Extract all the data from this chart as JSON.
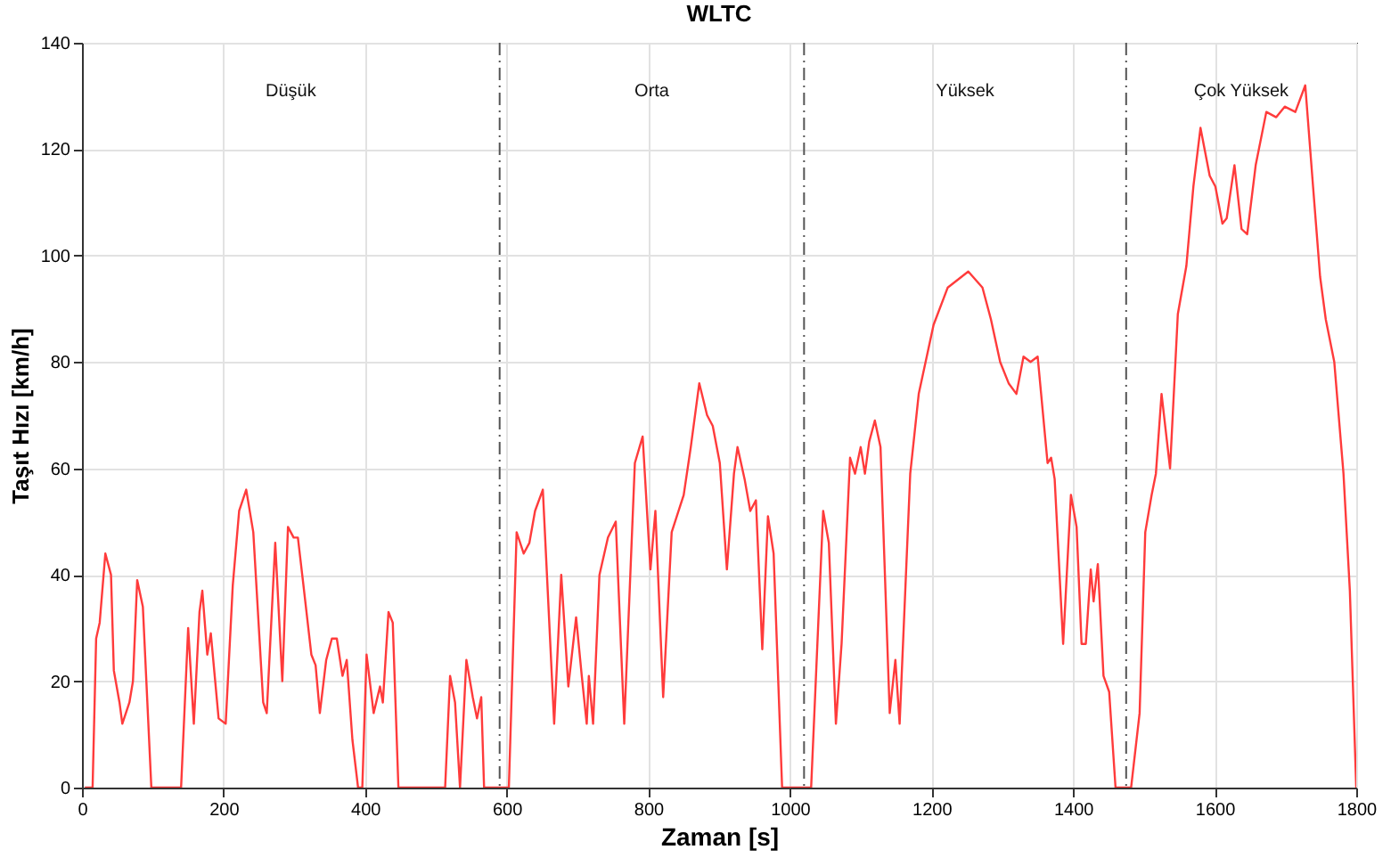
{
  "chart_data": {
    "type": "line",
    "title": "WLTC",
    "xlabel": "Zaman [s]",
    "ylabel": "Taşıt Hızı [km/h]",
    "x": [
      4,
      15,
      20,
      25,
      33,
      41,
      45,
      53,
      57,
      67,
      72,
      78,
      86,
      98,
      140,
      150,
      158,
      166,
      170,
      177,
      182,
      193,
      203,
      213,
      222,
      232,
      242,
      256,
      261,
      273,
      283,
      291,
      299,
      305,
      312,
      324,
      330,
      336,
      345,
      353,
      360,
      368,
      374,
      382,
      390,
      396,
      402,
      412,
      421,
      425,
      433,
      439,
      447,
      513,
      520,
      527,
      534,
      543,
      552,
      558,
      564,
      568,
      591,
      603,
      614,
      624,
      632,
      640,
      651,
      667,
      677,
      687,
      698,
      706,
      713,
      716,
      722,
      731,
      743,
      754,
      766,
      781,
      792,
      803,
      810,
      821,
      833,
      850,
      860,
      872,
      883,
      891,
      901,
      911,
      921,
      926,
      936,
      944,
      952,
      961,
      969,
      977,
      989,
      1026,
      1030,
      1047,
      1055,
      1065,
      1073,
      1085,
      1092,
      1100,
      1106,
      1112,
      1120,
      1128,
      1141,
      1149,
      1155,
      1170,
      1182,
      1203,
      1223,
      1252,
      1272,
      1284,
      1297,
      1309,
      1320,
      1330,
      1340,
      1350,
      1364,
      1369,
      1374,
      1386,
      1397,
      1405,
      1412,
      1418,
      1425,
      1429,
      1435,
      1443,
      1451,
      1460,
      1478,
      1482,
      1494,
      1502,
      1511,
      1517,
      1525,
      1537,
      1548,
      1560,
      1570,
      1580,
      1593,
      1601,
      1611,
      1617,
      1628,
      1638,
      1646,
      1658,
      1673,
      1687,
      1699,
      1714,
      1728,
      1739,
      1749,
      1757,
      1769,
      1782,
      1791,
      1800
    ],
    "series": [
      {
        "color": "#ff3b3b",
        "values": [
          0,
          0,
          28,
          31,
          44,
          40,
          22,
          16,
          12,
          16,
          20,
          39,
          34,
          0,
          0,
          30,
          12,
          33,
          37,
          25,
          29,
          13,
          12,
          38,
          52,
          56,
          48,
          16,
          14,
          46,
          20,
          49,
          47,
          47,
          39,
          25,
          23,
          14,
          24,
          28,
          28,
          21,
          24,
          9,
          0,
          0,
          25,
          14,
          19,
          16,
          33,
          31,
          0,
          0,
          21,
          16,
          0,
          24,
          17,
          13,
          17,
          0,
          0,
          0,
          48,
          44,
          46,
          52,
          56,
          12,
          40,
          19,
          32,
          21,
          12,
          21,
          12,
          40,
          47,
          50,
          12,
          61,
          66,
          41,
          52,
          17,
          48,
          55,
          64,
          76,
          70,
          68,
          61,
          41,
          59,
          64,
          58,
          52,
          54,
          26,
          51,
          44,
          0,
          0,
          0,
          52,
          46,
          12,
          27,
          62,
          59,
          64,
          59,
          65,
          69,
          64,
          14,
          24,
          12,
          59,
          74,
          87,
          94,
          97,
          94,
          88,
          80,
          76,
          74,
          81,
          80,
          81,
          61,
          62,
          58,
          27,
          55,
          49,
          27,
          27,
          41,
          35,
          42,
          21,
          18,
          0,
          0,
          0,
          14,
          48,
          55,
          59,
          74,
          60,
          89,
          98,
          113,
          124,
          115,
          113,
          106,
          107,
          117,
          105,
          104,
          117,
          127,
          126,
          128,
          127,
          132,
          113,
          96,
          88,
          80,
          59,
          37,
          0
        ]
      }
    ],
    "xlim": [
      0,
      1800
    ],
    "ylim": [
      0,
      140
    ],
    "xticks": [
      0,
      200,
      400,
      600,
      800,
      1000,
      1200,
      1400,
      1600,
      1800
    ],
    "yticks": [
      0,
      20,
      40,
      60,
      80,
      100,
      120,
      140
    ],
    "grid": true,
    "line_style": "solid",
    "marker": "none",
    "ref_lines": [
      {
        "axis": "x",
        "value": 590,
        "color": "#555555",
        "line_style": "dashdot"
      },
      {
        "axis": "x",
        "value": 1020,
        "color": "#555555",
        "line_style": "dashdot"
      },
      {
        "axis": "x",
        "value": 1475,
        "color": "#555555",
        "line_style": "dashdot"
      }
    ],
    "annotations": [
      "Düşük",
      "Orta",
      "Yüksek",
      "Çok Yüksek"
    ]
  }
}
